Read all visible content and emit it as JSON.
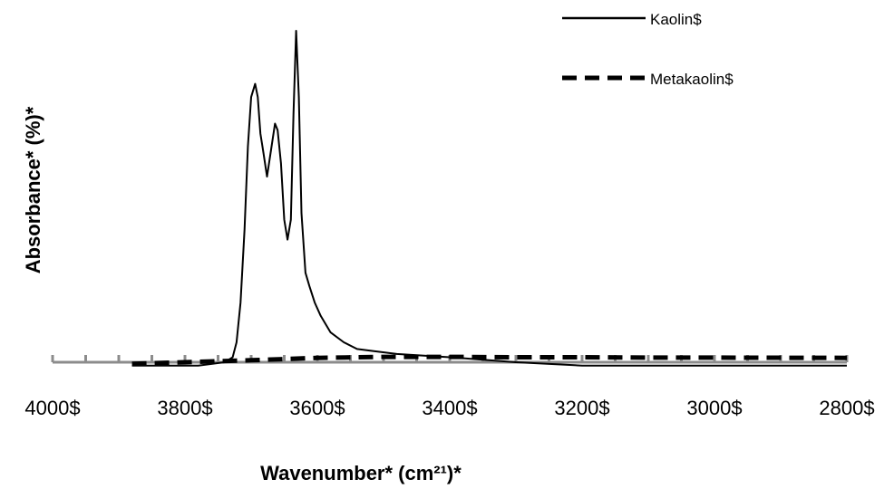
{
  "chart_data": {
    "type": "line",
    "xlabel": "Wavenumber* (cm²¹)*",
    "ylabel": "Absorbance* (%)*",
    "xlim": [
      4000,
      2800
    ],
    "x_reversed": true,
    "ylim": [
      0,
      100
    ],
    "grid": false,
    "legend_position": "top-right",
    "x_ticks": [
      4000,
      3800,
      3600,
      3400,
      3200,
      3000,
      2800
    ],
    "x_tick_labels": [
      "4000$",
      "3800$",
      "3600$",
      "3400$",
      "3200$",
      "3000$",
      "2800$"
    ],
    "series": [
      {
        "name": "Kaolin$",
        "line_style": "solid",
        "color": "#000000",
        "points": [
          [
            3880,
            -1
          ],
          [
            3780,
            -1
          ],
          [
            3740,
            0
          ],
          [
            3728,
            1.5
          ],
          [
            3722,
            6
          ],
          [
            3716,
            18
          ],
          [
            3710,
            40
          ],
          [
            3705,
            65
          ],
          [
            3700,
            80
          ],
          [
            3694,
            84
          ],
          [
            3690,
            80
          ],
          [
            3686,
            69
          ],
          [
            3682,
            64
          ],
          [
            3676,
            56
          ],
          [
            3670,
            64
          ],
          [
            3664,
            72
          ],
          [
            3660,
            70
          ],
          [
            3655,
            60
          ],
          [
            3650,
            43
          ],
          [
            3645,
            37
          ],
          [
            3640,
            43
          ],
          [
            3636,
            75
          ],
          [
            3632,
            100
          ],
          [
            3628,
            80
          ],
          [
            3624,
            45
          ],
          [
            3618,
            27
          ],
          [
            3612,
            23
          ],
          [
            3604,
            18
          ],
          [
            3595,
            14
          ],
          [
            3580,
            9
          ],
          [
            3560,
            6
          ],
          [
            3540,
            4
          ],
          [
            3520,
            3.5
          ],
          [
            3480,
            2.5
          ],
          [
            3400,
            1.5
          ],
          [
            3300,
            0
          ],
          [
            3200,
            -1
          ],
          [
            3080,
            -1
          ],
          [
            3000,
            -1
          ],
          [
            2800,
            -1
          ]
        ]
      },
      {
        "name": "Metakaolin$",
        "line_style": "dashed",
        "color": "#000000",
        "points": [
          [
            3880,
            -0.5
          ],
          [
            3800,
            0
          ],
          [
            3700,
            0.6
          ],
          [
            3600,
            1.3
          ],
          [
            3500,
            1.6
          ],
          [
            3400,
            1.6
          ],
          [
            3300,
            1.5
          ],
          [
            3200,
            1.5
          ],
          [
            3100,
            1.4
          ],
          [
            3000,
            1.4
          ],
          [
            2800,
            1.3
          ]
        ]
      }
    ]
  }
}
